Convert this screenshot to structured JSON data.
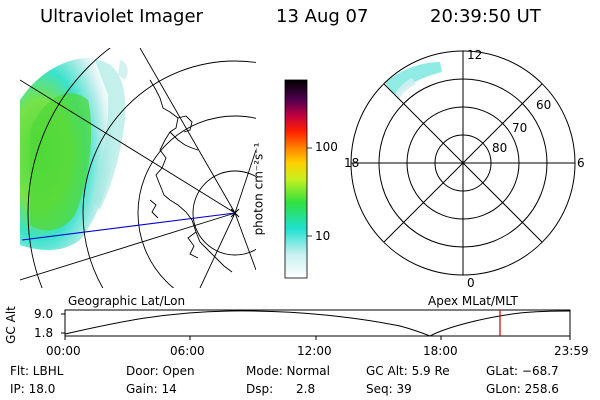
{
  "header": {
    "instrument": "Ultraviolet Imager",
    "date": "13 Aug 07",
    "time": "20:39:50 UT"
  },
  "colorbar": {
    "unit_label": "photon cm⁻²s⁻¹",
    "ticks": [
      "100",
      "10"
    ]
  },
  "polar_plot": {
    "latitude_labels": [
      "60",
      "70",
      "80"
    ],
    "mlt_labels": [
      "12",
      "18",
      "6",
      "0"
    ]
  },
  "panel_labels": {
    "left": "Geographic Lat/Lon",
    "right": "Apex MLat/MLT"
  },
  "altitude_plot": {
    "axis_label": "GC Alt",
    "y_ticks": [
      "9.0",
      "1.8"
    ],
    "x_ticks": [
      "00:00",
      "06:00",
      "12:00",
      "18:00",
      "23:59"
    ],
    "marker_color": "#cc0000"
  },
  "info": {
    "flt": "Flt: LBHL",
    "ip": "IP: 18.0",
    "door": "Door: Open",
    "gain": "Gain: 14",
    "mode": "Mode: Normal",
    "dsp_label": "Dsp:",
    "dsp_value": "2.8",
    "gc_alt": "GC Alt: 5.9 Re",
    "seq": "Seq: 39",
    "glat": "GLat: −68.7",
    "glon": "GLon: 258.6"
  }
}
